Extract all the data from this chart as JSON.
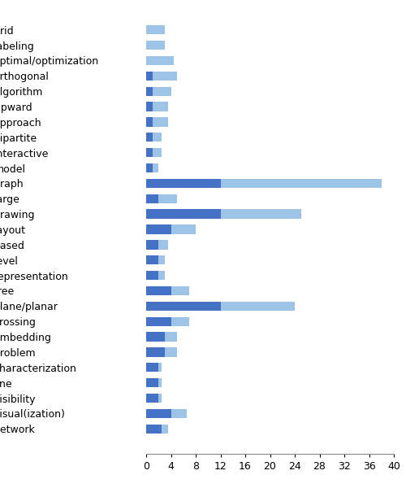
{
  "categories": [
    "grid",
    "labeling",
    "optimal/optimization",
    "orthogonal",
    "algorithm",
    "upward",
    "approach",
    "bipartite",
    "interactive",
    "model",
    "graph",
    "large",
    "drawing",
    "layout",
    "based",
    "level",
    "representation",
    "tree",
    "plane/planar",
    "crossing",
    "embedding",
    "problem",
    "characterization",
    "line",
    "visibility",
    "visual(ization)",
    "network"
  ],
  "total": [
    3.0,
    3.0,
    4.5,
    5.0,
    4.0,
    3.5,
    3.5,
    2.5,
    2.5,
    2.0,
    38.0,
    5.0,
    25.0,
    8.0,
    3.5,
    3.0,
    3.0,
    7.0,
    24.0,
    7.0,
    5.0,
    5.0,
    2.5,
    2.5,
    2.5,
    6.5,
    3.5
  ],
  "accepted": [
    0,
    0,
    0,
    1.0,
    1.0,
    1.0,
    1.0,
    1.0,
    1.0,
    1.0,
    12.0,
    2.0,
    12.0,
    4.0,
    2.0,
    2.0,
    2.0,
    4.0,
    12.0,
    4.0,
    3.0,
    3.0,
    2.0,
    2.0,
    2.0,
    4.0,
    2.5
  ],
  "color_accepted": "#4472C4",
  "color_total": "#9DC3E6",
  "background_color": "#FFFFFF",
  "xlim": [
    0,
    40
  ],
  "xticks": [
    0,
    4,
    8,
    12,
    16,
    20,
    24,
    28,
    32,
    36,
    40
  ],
  "bar_height": 0.6,
  "figsize": [
    5.0,
    6.0
  ],
  "dpi": 100,
  "label_fontsize": 9,
  "tick_fontsize": 9
}
